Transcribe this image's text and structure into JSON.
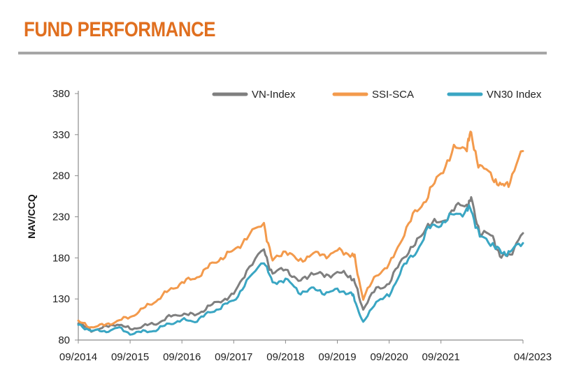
{
  "header": {
    "title": "FUND PERFORMANCE"
  },
  "colors": {
    "accent": "#E06F1F",
    "rule": "#A6A6A6",
    "vn_index": "#7F7F7F",
    "ssi_sca": "#F39A4C",
    "vn30": "#3AA6C3"
  },
  "chart_data": {
    "type": "line",
    "title": "",
    "ylabel": "NAV/CCQ",
    "xlabel": "",
    "ylim": [
      80,
      380
    ],
    "yticks": [
      80,
      130,
      180,
      230,
      280,
      330,
      380
    ],
    "xlim": [
      "2014-09",
      "2023-04"
    ],
    "xticks": [
      "09/2014",
      "09/2015",
      "09/2016",
      "09/2017",
      "09/2018",
      "09/2019",
      "09/2020",
      "09/2021",
      "04/2023"
    ],
    "grid": false,
    "legend": "top",
    "series": [
      {
        "name": "VN-Index",
        "points": [
          [
            "2014-09",
            100
          ],
          [
            "2014-12",
            92
          ],
          [
            "2015-03",
            95
          ],
          [
            "2015-06",
            100
          ],
          [
            "2015-09",
            93
          ],
          [
            "2015-12",
            97
          ],
          [
            "2016-03",
            100
          ],
          [
            "2016-06",
            108
          ],
          [
            "2016-09",
            112
          ],
          [
            "2016-12",
            110
          ],
          [
            "2017-03",
            120
          ],
          [
            "2017-06",
            128
          ],
          [
            "2017-09",
            135
          ],
          [
            "2017-12",
            165
          ],
          [
            "2018-04",
            190
          ],
          [
            "2018-06",
            160
          ],
          [
            "2018-09",
            168
          ],
          [
            "2018-12",
            150
          ],
          [
            "2019-03",
            162
          ],
          [
            "2019-06",
            158
          ],
          [
            "2019-09",
            162
          ],
          [
            "2019-12",
            158
          ],
          [
            "2020-01",
            150
          ],
          [
            "2020-03",
            118
          ],
          [
            "2020-06",
            143
          ],
          [
            "2020-09",
            148
          ],
          [
            "2020-12",
            180
          ],
          [
            "2021-03",
            195
          ],
          [
            "2021-06",
            222
          ],
          [
            "2021-09",
            222
          ],
          [
            "2021-12",
            240
          ],
          [
            "2022-03",
            245
          ],
          [
            "2022-04",
            250
          ],
          [
            "2022-06",
            212
          ],
          [
            "2022-09",
            205
          ],
          [
            "2022-11",
            180
          ],
          [
            "2023-01",
            185
          ],
          [
            "2023-04",
            210
          ]
        ]
      },
      {
        "name": "SSI-SCA",
        "points": [
          [
            "2014-09",
            102
          ],
          [
            "2014-12",
            96
          ],
          [
            "2015-03",
            98
          ],
          [
            "2015-06",
            103
          ],
          [
            "2015-09",
            108
          ],
          [
            "2015-12",
            118
          ],
          [
            "2016-03",
            128
          ],
          [
            "2016-06",
            140
          ],
          [
            "2016-09",
            150
          ],
          [
            "2016-12",
            155
          ],
          [
            "2017-03",
            168
          ],
          [
            "2017-06",
            180
          ],
          [
            "2017-09",
            188
          ],
          [
            "2017-12",
            205
          ],
          [
            "2018-04",
            222
          ],
          [
            "2018-06",
            175
          ],
          [
            "2018-09",
            190
          ],
          [
            "2018-12",
            175
          ],
          [
            "2019-03",
            185
          ],
          [
            "2019-06",
            183
          ],
          [
            "2019-09",
            188
          ],
          [
            "2019-12",
            185
          ],
          [
            "2020-01",
            180
          ],
          [
            "2020-03",
            130
          ],
          [
            "2020-06",
            160
          ],
          [
            "2020-09",
            170
          ],
          [
            "2020-12",
            205
          ],
          [
            "2021-03",
            235
          ],
          [
            "2021-06",
            255
          ],
          [
            "2021-09",
            285
          ],
          [
            "2021-12",
            310
          ],
          [
            "2022-03",
            318
          ],
          [
            "2022-04",
            330
          ],
          [
            "2022-06",
            290
          ],
          [
            "2022-09",
            280
          ],
          [
            "2022-11",
            265
          ],
          [
            "2023-01",
            275
          ],
          [
            "2023-04",
            310
          ]
        ]
      },
      {
        "name": "VN30 Index",
        "points": [
          [
            "2014-09",
            98
          ],
          [
            "2014-12",
            92
          ],
          [
            "2015-03",
            90
          ],
          [
            "2015-06",
            95
          ],
          [
            "2015-09",
            88
          ],
          [
            "2015-12",
            90
          ],
          [
            "2016-03",
            92
          ],
          [
            "2016-06",
            100
          ],
          [
            "2016-09",
            104
          ],
          [
            "2016-12",
            103
          ],
          [
            "2017-03",
            112
          ],
          [
            "2017-06",
            120
          ],
          [
            "2017-09",
            128
          ],
          [
            "2017-12",
            150
          ],
          [
            "2018-04",
            178
          ],
          [
            "2018-06",
            148
          ],
          [
            "2018-09",
            155
          ],
          [
            "2018-12",
            138
          ],
          [
            "2019-03",
            142
          ],
          [
            "2019-06",
            138
          ],
          [
            "2019-09",
            140
          ],
          [
            "2019-12",
            138
          ],
          [
            "2020-01",
            130
          ],
          [
            "2020-03",
            100
          ],
          [
            "2020-06",
            128
          ],
          [
            "2020-09",
            133
          ],
          [
            "2020-12",
            168
          ],
          [
            "2021-03",
            185
          ],
          [
            "2021-06",
            215
          ],
          [
            "2021-09",
            222
          ],
          [
            "2021-12",
            232
          ],
          [
            "2022-03",
            238
          ],
          [
            "2022-04",
            240
          ],
          [
            "2022-06",
            205
          ],
          [
            "2022-09",
            198
          ],
          [
            "2022-11",
            185
          ],
          [
            "2023-01",
            188
          ],
          [
            "2023-04",
            198
          ]
        ]
      }
    ]
  }
}
